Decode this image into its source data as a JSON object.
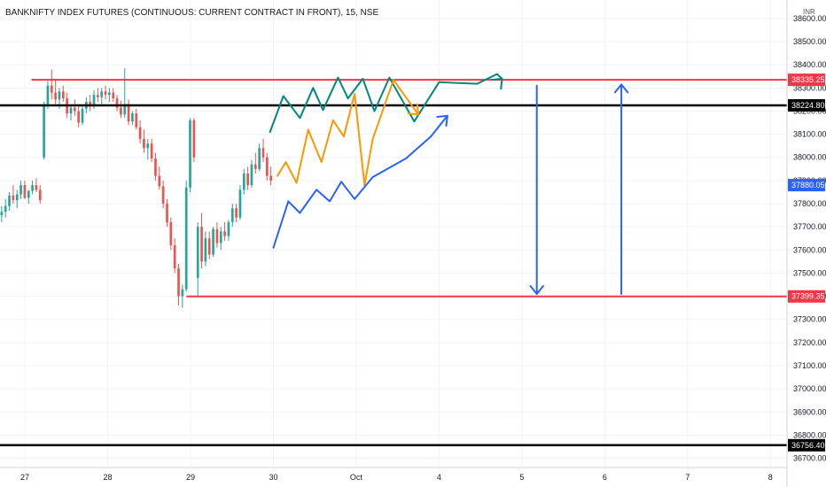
{
  "chart_data": {
    "type": "candlestick",
    "title": "BANKNIFTY INDEX FUTURES (CONTINUOUS: CURRENT CONTRACT IN FRONT), 15, NSE",
    "currency": "INR",
    "ylim": [
      36660,
      38680
    ],
    "y_ticks": [
      36700,
      36800,
      36900,
      37000,
      37100,
      37200,
      37300,
      37400,
      37500,
      37600,
      37700,
      37800,
      37900,
      38000,
      38100,
      38200,
      38300,
      38400,
      38500,
      38600
    ],
    "x_ticks": [
      {
        "label": "27",
        "x": 0
      },
      {
        "label": "28",
        "x": 1
      },
      {
        "label": "29",
        "x": 2
      },
      {
        "label": "30",
        "x": 3
      },
      {
        "label": "Oct",
        "x": 4
      },
      {
        "label": "4",
        "x": 5
      },
      {
        "label": "5",
        "x": 6
      },
      {
        "label": "6",
        "x": 7
      },
      {
        "label": "7",
        "x": 8
      },
      {
        "label": "8",
        "x": 9
      }
    ],
    "xlim": [
      -0.3,
      9.2
    ],
    "colors": {
      "up": "#26a69a",
      "down": "#ef5350",
      "support": "#f23645",
      "level": "#000000",
      "teal": "#00897b",
      "orange": "#ff9800",
      "blue": "#2962ff"
    },
    "candles": [
      {
        "o": 37750,
        "h": 37790,
        "l": 37720,
        "c": 37765
      },
      {
        "o": 37765,
        "h": 37820,
        "l": 37740,
        "c": 37790
      },
      {
        "o": 37790,
        "h": 37850,
        "l": 37770,
        "c": 37835
      },
      {
        "o": 37835,
        "h": 37880,
        "l": 37800,
        "c": 37815
      },
      {
        "o": 37815,
        "h": 37860,
        "l": 37780,
        "c": 37840
      },
      {
        "o": 37840,
        "h": 37900,
        "l": 37820,
        "c": 37880
      },
      {
        "o": 37880,
        "h": 37900,
        "l": 37820,
        "c": 37825
      },
      {
        "o": 37825,
        "h": 37860,
        "l": 37800,
        "c": 37855
      },
      {
        "o": 37855,
        "h": 37900,
        "l": 37840,
        "c": 37880
      },
      {
        "o": 37880,
        "h": 37910,
        "l": 37850,
        "c": 37860
      },
      {
        "o": 37860,
        "h": 37880,
        "l": 37800,
        "c": 37815
      },
      {
        "o": 38000,
        "h": 38240,
        "l": 37990,
        "c": 38230
      },
      {
        "o": 38230,
        "h": 38330,
        "l": 38210,
        "c": 38310
      },
      {
        "o": 38310,
        "h": 38380,
        "l": 38250,
        "c": 38280
      },
      {
        "o": 38280,
        "h": 38340,
        "l": 38230,
        "c": 38250
      },
      {
        "o": 38250,
        "h": 38300,
        "l": 38210,
        "c": 38285
      },
      {
        "o": 38285,
        "h": 38310,
        "l": 38240,
        "c": 38255
      },
      {
        "o": 38255,
        "h": 38280,
        "l": 38170,
        "c": 38190
      },
      {
        "o": 38190,
        "h": 38230,
        "l": 38160,
        "c": 38215
      },
      {
        "o": 38215,
        "h": 38250,
        "l": 38180,
        "c": 38200
      },
      {
        "o": 38200,
        "h": 38230,
        "l": 38130,
        "c": 38150
      },
      {
        "o": 38150,
        "h": 38220,
        "l": 38140,
        "c": 38210
      },
      {
        "o": 38210,
        "h": 38260,
        "l": 38190,
        "c": 38240
      },
      {
        "o": 38240,
        "h": 38270,
        "l": 38200,
        "c": 38220
      },
      {
        "o": 38220,
        "h": 38290,
        "l": 38210,
        "c": 38270
      },
      {
        "o": 38270,
        "h": 38300,
        "l": 38240,
        "c": 38260
      },
      {
        "o": 38260,
        "h": 38300,
        "l": 38230,
        "c": 38285
      },
      {
        "o": 38285,
        "h": 38310,
        "l": 38250,
        "c": 38270
      },
      {
        "o": 38270,
        "h": 38300,
        "l": 38240,
        "c": 38280
      },
      {
        "o": 38280,
        "h": 38300,
        "l": 38240,
        "c": 38255
      },
      {
        "o": 38255,
        "h": 38270,
        "l": 38200,
        "c": 38215
      },
      {
        "o": 38215,
        "h": 38245,
        "l": 38170,
        "c": 38185
      },
      {
        "o": 38185,
        "h": 38385,
        "l": 38170,
        "c": 38230
      },
      {
        "o": 38230,
        "h": 38250,
        "l": 38140,
        "c": 38155
      },
      {
        "o": 38155,
        "h": 38200,
        "l": 38140,
        "c": 38190
      },
      {
        "o": 38190,
        "h": 38210,
        "l": 38120,
        "c": 38130
      },
      {
        "o": 38130,
        "h": 38160,
        "l": 38060,
        "c": 38080
      },
      {
        "o": 38080,
        "h": 38120,
        "l": 38020,
        "c": 38040
      },
      {
        "o": 38040,
        "h": 38080,
        "l": 37990,
        "c": 38060
      },
      {
        "o": 38060,
        "h": 38080,
        "l": 37980,
        "c": 37995
      },
      {
        "o": 37995,
        "h": 38020,
        "l": 37900,
        "c": 37920
      },
      {
        "o": 37920,
        "h": 37960,
        "l": 37860,
        "c": 37875
      },
      {
        "o": 37875,
        "h": 37900,
        "l": 37780,
        "c": 37800
      },
      {
        "o": 37800,
        "h": 37820,
        "l": 37700,
        "c": 37720
      },
      {
        "o": 37720,
        "h": 37740,
        "l": 37600,
        "c": 37620
      },
      {
        "o": 37620,
        "h": 37650,
        "l": 37500,
        "c": 37520
      },
      {
        "o": 37520,
        "h": 37540,
        "l": 37360,
        "c": 37400
      },
      {
        "o": 37400,
        "h": 37450,
        "l": 37350,
        "c": 37430
      },
      {
        "o": 37430,
        "h": 37900,
        "l": 37420,
        "c": 37870
      },
      {
        "o": 37870,
        "h": 38170,
        "l": 37850,
        "c": 38160
      },
      {
        "o": 38160,
        "h": 38170,
        "l": 37980,
        "c": 38000
      },
      {
        "o": 37480,
        "h": 37720,
        "l": 37400,
        "c": 37700
      },
      {
        "o": 37700,
        "h": 37760,
        "l": 37520,
        "c": 37550
      },
      {
        "o": 37550,
        "h": 37680,
        "l": 37530,
        "c": 37650
      },
      {
        "o": 37650,
        "h": 37680,
        "l": 37560,
        "c": 37580
      },
      {
        "o": 37580,
        "h": 37700,
        "l": 37570,
        "c": 37690
      },
      {
        "o": 37690,
        "h": 37720,
        "l": 37610,
        "c": 37630
      },
      {
        "o": 37630,
        "h": 37700,
        "l": 37600,
        "c": 37680
      },
      {
        "o": 37680,
        "h": 37720,
        "l": 37640,
        "c": 37660
      },
      {
        "o": 37660,
        "h": 37730,
        "l": 37640,
        "c": 37720
      },
      {
        "o": 37720,
        "h": 37800,
        "l": 37700,
        "c": 37780
      },
      {
        "o": 37780,
        "h": 37800,
        "l": 37720,
        "c": 37740
      },
      {
        "o": 37740,
        "h": 37880,
        "l": 37730,
        "c": 37860
      },
      {
        "o": 37860,
        "h": 37950,
        "l": 37840,
        "c": 37930
      },
      {
        "o": 37930,
        "h": 37960,
        "l": 37860,
        "c": 37880
      },
      {
        "o": 37880,
        "h": 37990,
        "l": 37870,
        "c": 37970
      },
      {
        "o": 37970,
        "h": 38020,
        "l": 37930,
        "c": 37950
      },
      {
        "o": 37950,
        "h": 38060,
        "l": 37940,
        "c": 38040
      },
      {
        "o": 38040,
        "h": 38080,
        "l": 37980,
        "c": 38000
      },
      {
        "o": 38000,
        "h": 38020,
        "l": 37900,
        "c": 37920
      },
      {
        "o": 37920,
        "h": 37960,
        "l": 37880,
        "c": 37900
      }
    ],
    "levels": [
      {
        "price": 38335.25,
        "label": "38335.25",
        "style": "support",
        "x_from": 0.08,
        "x_to": 9.2
      },
      {
        "price": 38224.8,
        "label": "38224.80",
        "style": "level",
        "x_from": -0.3,
        "x_to": 9.2
      },
      {
        "price": 37399.35,
        "label": "37399.35",
        "style": "support",
        "x_from": 1.95,
        "x_to": 9.2
      },
      {
        "price": 36756.4,
        "label": "36756.40",
        "style": "level",
        "x_from": -0.3,
        "x_to": 9.2
      }
    ],
    "price_badge": {
      "price": 37880.05,
      "label": "37880.05"
    },
    "projections": [
      {
        "name": "",
        "color": "teal",
        "arrow": true,
        "points": [
          [
            2.96,
            38110
          ],
          [
            3.12,
            38265
          ],
          [
            3.32,
            38170
          ],
          [
            3.48,
            38300
          ],
          [
            3.6,
            38205
          ],
          [
            3.78,
            38345
          ],
          [
            3.9,
            38255
          ],
          [
            4.08,
            38340
          ],
          [
            4.22,
            38200
          ],
          [
            4.4,
            38345
          ],
          [
            4.7,
            38155
          ],
          [
            5.0,
            38325
          ],
          [
            5.46,
            38318
          ],
          [
            5.7,
            38360
          ],
          [
            5.76,
            38340
          ]
        ],
        "tip": [
          5.76,
          38340
        ],
        "dir": [
          1,
          1
        ]
      },
      {
        "name": "",
        "color": "orange",
        "arrow": true,
        "points": [
          [
            3.05,
            37920
          ],
          [
            3.15,
            37980
          ],
          [
            3.28,
            37890
          ],
          [
            3.42,
            38120
          ],
          [
            3.58,
            37980
          ],
          [
            3.72,
            38160
          ],
          [
            3.85,
            38090
          ],
          [
            3.98,
            38275
          ],
          [
            4.1,
            37880
          ],
          [
            4.2,
            38080
          ],
          [
            4.45,
            38335
          ],
          [
            4.75,
            38185
          ]
        ],
        "tip": [
          4.75,
          38185
        ],
        "dir": [
          1,
          -1
        ]
      },
      {
        "name": "",
        "color": "blue",
        "arrow": true,
        "points": [
          [
            3.0,
            37610
          ],
          [
            3.18,
            37810
          ],
          [
            3.32,
            37760
          ],
          [
            3.52,
            37860
          ],
          [
            3.68,
            37810
          ],
          [
            3.82,
            37895
          ],
          [
            3.98,
            37820
          ],
          [
            4.2,
            37915
          ],
          [
            4.6,
            37995
          ],
          [
            4.9,
            38090
          ],
          [
            5.1,
            38180
          ]
        ],
        "tip": [
          5.1,
          38180
        ],
        "dir": [
          1,
          1
        ]
      },
      {
        "name": "",
        "color": "blue",
        "arrow": true,
        "points": [
          [
            6.18,
            38310
          ],
          [
            6.18,
            37410
          ]
        ],
        "tip": [
          6.18,
          37410
        ],
        "dir": [
          0,
          -1
        ]
      },
      {
        "name": "",
        "color": "blue",
        "arrow": true,
        "points": [
          [
            7.2,
            37410
          ],
          [
            7.2,
            38315
          ]
        ],
        "tip": [
          7.2,
          38315
        ],
        "dir": [
          0,
          1
        ]
      }
    ]
  }
}
